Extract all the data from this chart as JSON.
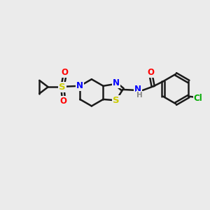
{
  "bg_color": "#ebebeb",
  "bond_color": "#1a1a1a",
  "bond_width": 1.8,
  "atom_colors": {
    "N": "#0000ff",
    "S": "#cccc00",
    "O": "#ff0000",
    "Cl": "#00aa00",
    "H": "#888888",
    "C": "#1a1a1a"
  },
  "font_size": 8.5,
  "fig_bg": "#ebebeb"
}
